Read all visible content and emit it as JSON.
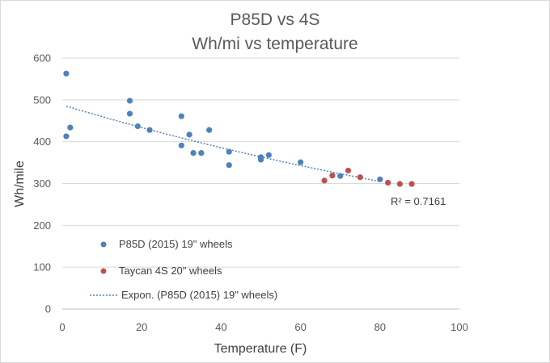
{
  "chart_data": {
    "type": "scatter",
    "title": "P85D vs 4S",
    "subtitle": "Wh/mi vs temperature",
    "xlabel": "Temperature (F)",
    "ylabel": "Wh/mile",
    "xlim": [
      0,
      100
    ],
    "ylim": [
      0,
      600
    ],
    "xticks": [
      "0",
      "20",
      "40",
      "60",
      "80",
      "100"
    ],
    "yticks": [
      "0",
      "100",
      "200",
      "300",
      "400",
      "500",
      "600"
    ],
    "grid": "horizontal",
    "legend_position": "inside-bottom-left",
    "series": [
      {
        "name": "P85D (2015) 19\" wheels",
        "color": "#4f81bd",
        "points": [
          [
            1,
            563
          ],
          [
            1,
            413
          ],
          [
            2,
            434
          ],
          [
            17,
            498
          ],
          [
            17,
            467
          ],
          [
            19,
            437
          ],
          [
            22,
            428
          ],
          [
            30,
            461
          ],
          [
            30,
            391
          ],
          [
            32,
            417
          ],
          [
            33,
            373
          ],
          [
            35,
            373
          ],
          [
            37,
            428
          ],
          [
            42,
            376
          ],
          [
            42,
            344
          ],
          [
            50,
            363
          ],
          [
            50,
            357
          ],
          [
            52,
            368
          ],
          [
            60,
            351
          ],
          [
            70,
            318
          ],
          [
            80,
            310
          ]
        ]
      },
      {
        "name": "Taycan 4S 20\" wheels",
        "color": "#c0504d",
        "points": [
          [
            66,
            307
          ],
          [
            68,
            319
          ],
          [
            72,
            331
          ],
          [
            75,
            315
          ],
          [
            82,
            302
          ],
          [
            85,
            299
          ],
          [
            88,
            299
          ]
        ]
      }
    ],
    "trendline": {
      "name": "Expon. (P85D (2015) 19\" wheels)",
      "type": "exponential",
      "color": "#4f81bd",
      "x_range": [
        1,
        80
      ],
      "y_range": [
        485,
        305
      ],
      "annotation": "R² = 0.7161"
    }
  }
}
